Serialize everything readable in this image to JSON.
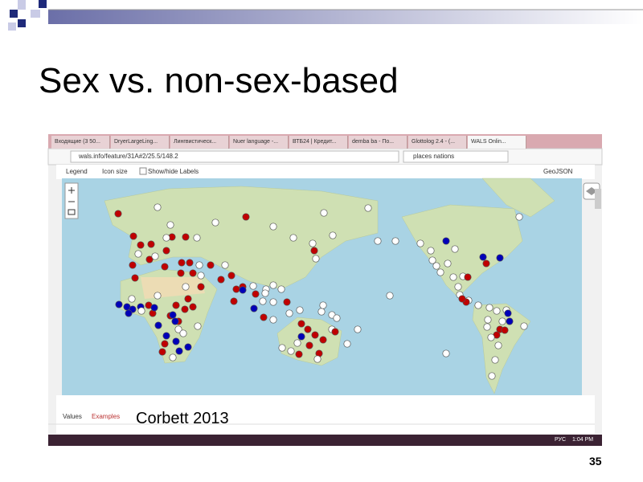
{
  "slide": {
    "title": "Sex vs. non-sex-based",
    "citation": "Corbett 2013",
    "page_number": "35"
  },
  "browser": {
    "tabs": [
      "Входящие (3 50...",
      "DryerLargeLing...",
      "Лингвистическ...",
      "Nuer language -...",
      "ВТБ24 | Кредит...",
      "demba ba - По...",
      "Glottolog 2.4 - (...",
      "WALS Onlin..."
    ],
    "url": "wals.info/feature/31A#2/25.5/148.2",
    "search": "places nations"
  },
  "map_toolbar": {
    "legend": "Legend",
    "icon_size": "Icon size",
    "labels": "Show/hide Labels",
    "geojson": "GeoJSON"
  },
  "bottom_tabs": [
    "Values",
    "Examples"
  ],
  "taskbar": {
    "language": "РУС",
    "time": "1:04 PM"
  }
}
